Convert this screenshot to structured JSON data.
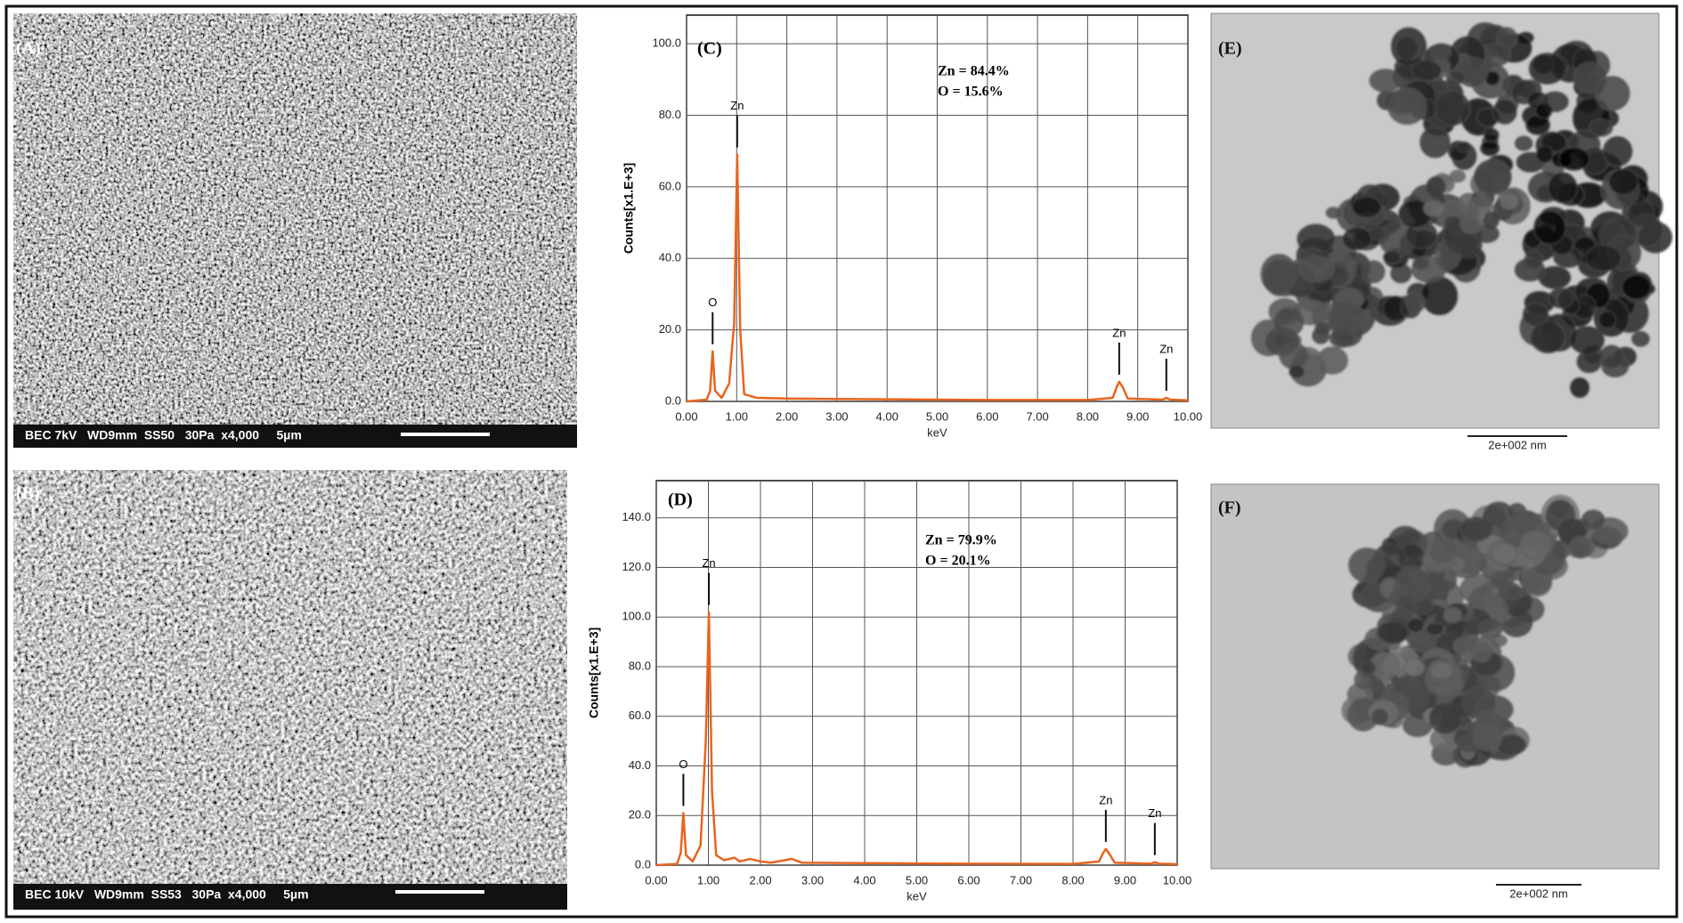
{
  "sem": [
    {
      "label": "(A)",
      "info": "BEC 7kV   WD9mm  SS50   30Pa  x4,000     5µm"
    },
    {
      "label": "(B)",
      "info": "BEC 10kV   WD9mm  SS53   30Pa  x4,000     5µm"
    }
  ],
  "tem": [
    {
      "label": "(E)",
      "scale": "2e+002 nm"
    },
    {
      "label": "(F)",
      "scale": "2e+002 nm"
    }
  ],
  "chart_data": [
    {
      "type": "line",
      "title": "(C)",
      "x_label": "keV",
      "y_label": "Counts[x1.E+3]",
      "annotations": [
        "Zn = 84.4%",
        "O = 15.6%"
      ],
      "peak_labels": [
        "O",
        "Zn",
        "Zn",
        "Zn"
      ],
      "color": "#e8641e",
      "grid": true,
      "x": [
        0,
        0.4,
        0.47,
        0.52,
        0.57,
        0.7,
        0.85,
        0.95,
        1.01,
        1.07,
        1.15,
        1.4,
        2,
        4,
        6,
        8,
        8.5,
        8.58,
        8.63,
        8.7,
        8.8,
        9.5,
        9.57,
        9.65,
        10
      ],
      "values": [
        0,
        0.5,
        3,
        14,
        3,
        1,
        5,
        22,
        69,
        20,
        2,
        1,
        0.8,
        0.6,
        0.4,
        0.4,
        1,
        4,
        5.5,
        4,
        0.8,
        0.5,
        1,
        0.5,
        0.3
      ],
      "xlim": [
        0,
        10
      ],
      "ylim": [
        0,
        108
      ],
      "xticks": [
        {
          "value": 0,
          "label": "0.00"
        },
        {
          "value": 1,
          "label": "1.00"
        },
        {
          "value": 2,
          "label": "2.00"
        },
        {
          "value": 3,
          "label": "3.00"
        },
        {
          "value": 4,
          "label": "4.00"
        },
        {
          "value": 5,
          "label": "5.00"
        },
        {
          "value": 6,
          "label": "6.00"
        },
        {
          "value": 7,
          "label": "7.00"
        },
        {
          "value": 8,
          "label": "8.00"
        },
        {
          "value": 9,
          "label": "9.00"
        },
        {
          "value": 10,
          "label": "10.00"
        }
      ],
      "yticks": [
        {
          "value": 0,
          "label": "0.0"
        },
        {
          "value": 20,
          "label": "20.0"
        },
        {
          "value": 40,
          "label": "40.0"
        },
        {
          "value": 60,
          "label": "60.0"
        },
        {
          "value": 80,
          "label": "80.0"
        },
        {
          "value": 100,
          "label": "100.0"
        }
      ]
    },
    {
      "type": "line",
      "title": "(D)",
      "x_label": "keV",
      "y_label": "Counts[x1.E+3]",
      "annotations": [
        "Zn = 79.9%",
        "O = 20.1%"
      ],
      "peak_labels": [
        "O",
        "Zn",
        "Zn",
        "Zn"
      ],
      "color": "#e8641e",
      "grid": true,
      "x": [
        0,
        0.4,
        0.47,
        0.52,
        0.57,
        0.7,
        0.85,
        0.95,
        1.01,
        1.07,
        1.15,
        1.3,
        1.5,
        1.6,
        1.8,
        2.0,
        2.2,
        2.6,
        2.8,
        4,
        6,
        8,
        8.5,
        8.58,
        8.63,
        8.7,
        8.8,
        9.5,
        9.57,
        9.65,
        10
      ],
      "values": [
        0,
        0.5,
        5,
        21,
        4,
        1.5,
        8,
        50,
        102,
        30,
        4,
        2,
        3,
        1.5,
        2.5,
        1.5,
        1,
        2.5,
        1,
        0.8,
        0.6,
        0.5,
        1.5,
        5,
        6.5,
        4.5,
        1,
        0.6,
        1.2,
        0.6,
        0.4
      ],
      "xlim": [
        0,
        10
      ],
      "ylim": [
        0,
        155
      ],
      "xticks": [
        {
          "value": 0,
          "label": "0.00"
        },
        {
          "value": 1,
          "label": "1.00"
        },
        {
          "value": 2,
          "label": "2.00"
        },
        {
          "value": 3,
          "label": "3.00"
        },
        {
          "value": 4,
          "label": "4.00"
        },
        {
          "value": 5,
          "label": "5.00"
        },
        {
          "value": 6,
          "label": "6.00"
        },
        {
          "value": 7,
          "label": "7.00"
        },
        {
          "value": 8,
          "label": "8.00"
        },
        {
          "value": 9,
          "label": "9.00"
        },
        {
          "value": 10,
          "label": "10.00"
        }
      ],
      "yticks": [
        {
          "value": 0,
          "label": "0.0"
        },
        {
          "value": 20,
          "label": "20.0"
        },
        {
          "value": 40,
          "label": "40.0"
        },
        {
          "value": 60,
          "label": "60.0"
        },
        {
          "value": 80,
          "label": "80.0"
        },
        {
          "value": 100,
          "label": "100.0"
        },
        {
          "value": 120,
          "label": "120.0"
        },
        {
          "value": 140,
          "label": "140.0"
        }
      ]
    }
  ]
}
